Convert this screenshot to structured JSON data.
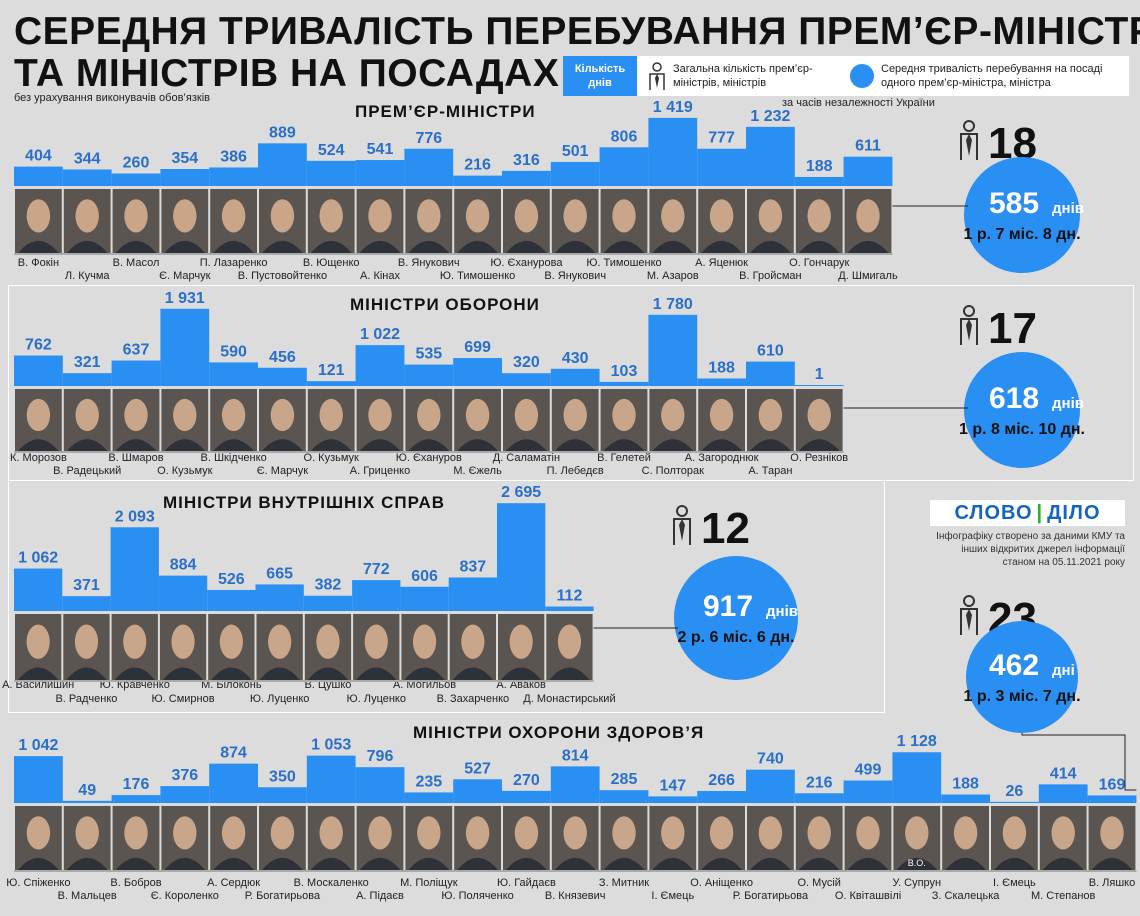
{
  "header": {
    "title_line1": "СЕРЕДНЯ ТРИВАЛІСТЬ ПЕРЕБУВАННЯ ПРЕМ’ЄР-МІНІСТРІВ",
    "title_line2": "ТА МІНІСТРІВ НА ПОСАДАХ",
    "note_left": "без урахування виконувачів обов’язків",
    "note_right": "за часів незалежності України"
  },
  "legend": {
    "days_label": "Кількість днів",
    "count_label": "Загальна кількість прем’єр-міністрів, міністрів",
    "avg_label": "Середня тривалість перебування на посаді одного прем’єр-міністра, міністра"
  },
  "logo": {
    "left": "СЛОВО",
    "sep": "|",
    "right": "ДІЛО"
  },
  "credit": "Інфографіку створено за даними КМУ та інших відкритих джерел інформації станом на 05.11.2021 року",
  "colors": {
    "bar": "#2a8ff2",
    "circle": "#2a8ff2",
    "background": "#dcdcdc"
  },
  "icons": [
    "person-tie-icon"
  ],
  "chart_data": [
    {
      "type": "bar",
      "title": "ПРЕМ’ЄР-МІНІСТРИ",
      "count": "18",
      "avg_days": "585",
      "avg_unit": "днів",
      "avg_text": "1 р. 7 міс. 8 дн.",
      "categories": [
        "В. Фокін",
        "Л. Кучма",
        "В. Масол",
        "Є. Марчук",
        "П. Лазаренко",
        "В. Пустовойтенко",
        "В. Ющенко",
        "А. Кінах",
        "В. Янукович",
        "Ю. Тимошенко",
        "Ю. Єханурова",
        "В. Янукович",
        "Ю. Тимошенко",
        "М. Азаров",
        "А. Яценюк",
        "В. Гройсман",
        "О. Гончарук",
        "Д. Шмигаль"
      ],
      "values": [
        404,
        344,
        260,
        354,
        386,
        889,
        524,
        541,
        776,
        216,
        316,
        501,
        806,
        1419,
        777,
        1232,
        188,
        611
      ],
      "labels": [
        "404",
        "344",
        "260",
        "354",
        "386",
        "889",
        "524",
        "541",
        "776",
        "216",
        "316",
        "501",
        "806",
        "1 419",
        "777",
        "1 232",
        "188",
        "611"
      ]
    },
    {
      "type": "bar",
      "title": "МІНІСТРИ ОБОРОНИ",
      "count": "17",
      "avg_days": "618",
      "avg_unit": "днів",
      "avg_text": "1 р. 8 міс. 10 дн.",
      "categories": [
        "К. Морозов",
        "В. Радецький",
        "В. Шмаров",
        "О. Кузьмук",
        "В. Шкідченко",
        "Є. Марчук",
        "О. Кузьмук",
        "А. Гриценко",
        "Ю. Єхануров",
        "М. Єжель",
        "Д. Саламатін",
        "П. Лебедєв",
        "В. Гелетей",
        "С. Полторак",
        "А. Загороднюк",
        "А. Таран",
        "О. Резніков"
      ],
      "values": [
        762,
        321,
        637,
        1931,
        590,
        456,
        121,
        1022,
        535,
        699,
        320,
        430,
        103,
        1780,
        188,
        610,
        1
      ],
      "labels": [
        "762",
        "321",
        "637",
        "1 931",
        "590",
        "456",
        "121",
        "1 022",
        "535",
        "699",
        "320",
        "430",
        "103",
        "1 780",
        "188",
        "610",
        "1"
      ]
    },
    {
      "type": "bar",
      "title": "МІНІСТРИ ВНУТРІШНІХ СПРАВ",
      "count": "12",
      "avg_days": "917",
      "avg_unit": "днів",
      "avg_text": "2 р. 6 міс. 6 дн.",
      "categories": [
        "А. Василишин",
        "В. Радченко",
        "Ю. Кравченко",
        "Ю. Смирнов",
        "М. Білоконь",
        "Ю. Луценко",
        "В. Цушко",
        "Ю. Луценко",
        "А. Могильов",
        "В. Захарченко",
        "А. Аваков",
        "Д. Монастирський"
      ],
      "values": [
        1062,
        371,
        2093,
        884,
        526,
        665,
        382,
        772,
        606,
        837,
        2695,
        112
      ],
      "labels": [
        "1 062",
        "371",
        "2 093",
        "884",
        "526",
        "665",
        "382",
        "772",
        "606",
        "837",
        "2 695",
        "112"
      ]
    },
    {
      "type": "bar",
      "title": "МІНІСТРИ ОХОРОНИ ЗДОРОВ’Я",
      "count": "23",
      "avg_days": "462",
      "avg_unit": "дні",
      "avg_text": "1 р. 3 міс. 7 дн.",
      "categories": [
        "Ю. Спіженко",
        "В. Мальцев",
        "В. Бобров",
        "Є. Короленко",
        "А. Сердюк",
        "Р. Богатирьова",
        "В. Москаленко",
        "А. Підаєв",
        "М. Поліщук",
        "Ю. Поляченко",
        "Ю. Гайдаєв",
        "В. Князевич",
        "З. Митник",
        "І. Ємець",
        "О. Аніщенко",
        "Р. Богатирьова",
        "О. Мусій",
        "О. Квіташвілі",
        "У. Супрун",
        "З. Скалецька",
        "І. Ємець",
        "М. Степанов",
        "В. Ляшко"
      ],
      "values": [
        1042,
        49,
        176,
        376,
        874,
        350,
        1053,
        796,
        235,
        527,
        270,
        814,
        285,
        147,
        266,
        740,
        216,
        499,
        1128,
        188,
        26,
        414,
        169
      ],
      "labels": [
        "1 042",
        "49",
        "176",
        "376",
        "874",
        "350",
        "1 053",
        "796",
        "235",
        "527",
        "270",
        "814",
        "285",
        "147",
        "266",
        "740",
        "216",
        "499",
        "1 128",
        "188",
        "26",
        "414",
        "169"
      ],
      "photo_note": "В.О."
    }
  ]
}
